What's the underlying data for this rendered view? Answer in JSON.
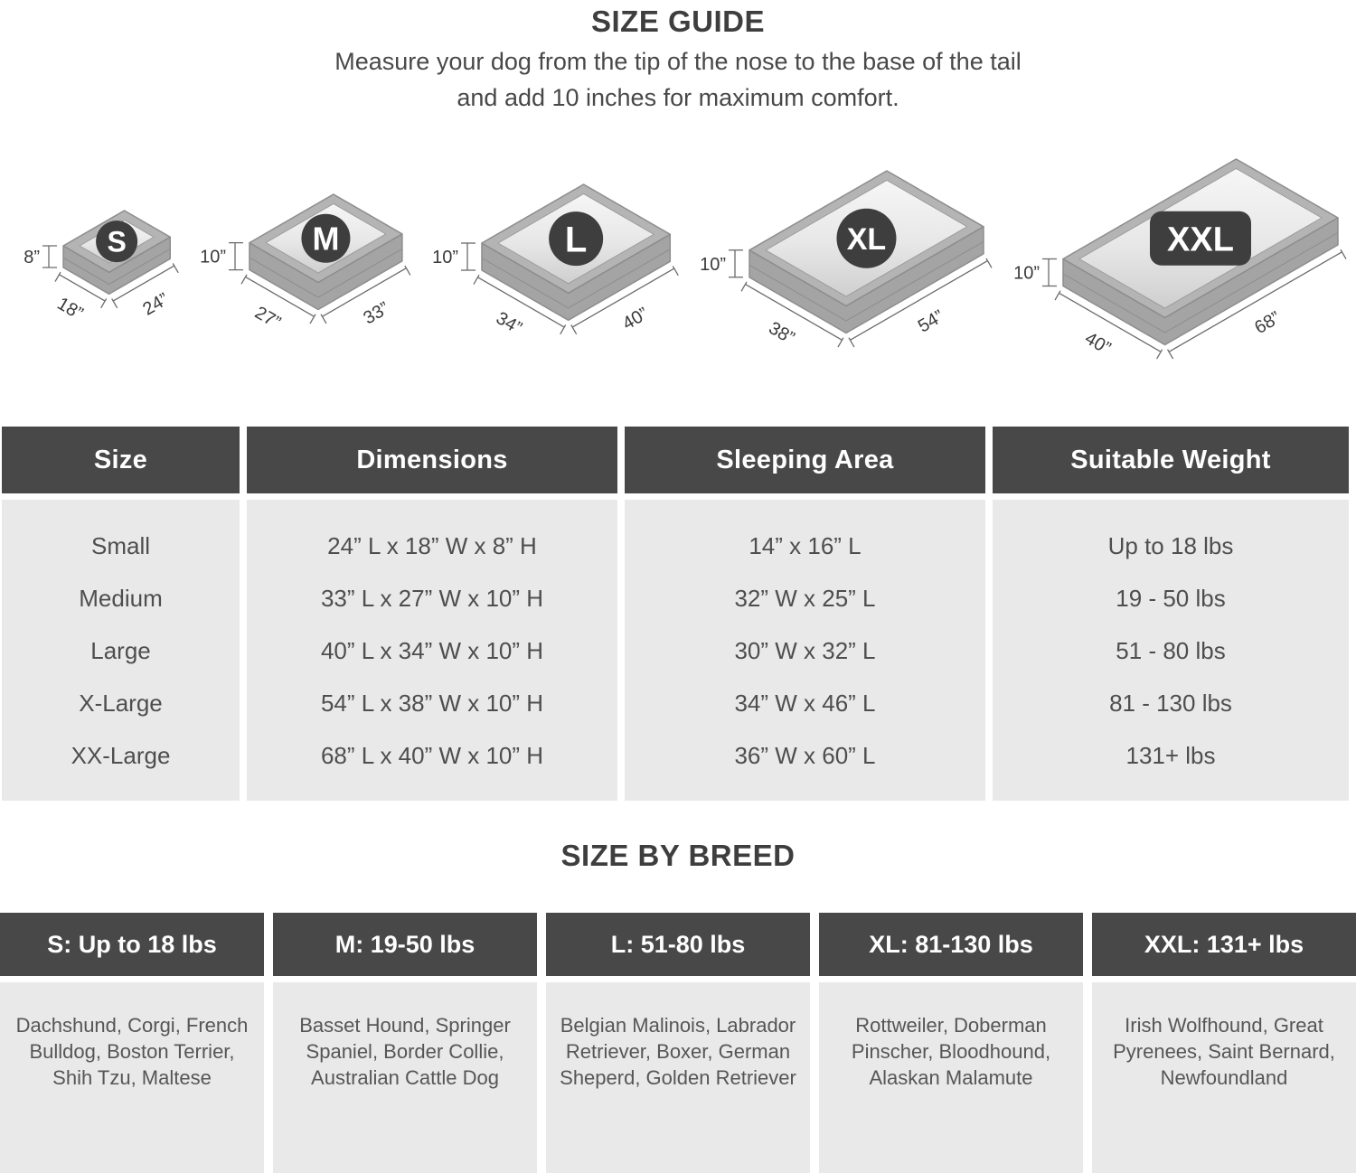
{
  "header": {
    "title": "SIZE GUIDE",
    "subtitle_line1": "Measure your dog from the tip of the nose to the base of the tail",
    "subtitle_line2": "and add 10 inches for maximum comfort."
  },
  "beds": [
    {
      "label": "S",
      "badge": "circle",
      "height_in": 8,
      "width_in": 18,
      "length_in": 24,
      "height_label": "8”",
      "width_label": "18”",
      "length_label": "24”"
    },
    {
      "label": "M",
      "badge": "circle",
      "height_in": 10,
      "width_in": 27,
      "length_in": 33,
      "height_label": "10”",
      "width_label": "27”",
      "length_label": "33”"
    },
    {
      "label": "L",
      "badge": "circle",
      "height_in": 10,
      "width_in": 34,
      "length_in": 40,
      "height_label": "10”",
      "width_label": "34”",
      "length_label": "40”"
    },
    {
      "label": "XL",
      "badge": "circle",
      "height_in": 10,
      "width_in": 38,
      "length_in": 54,
      "height_label": "10”",
      "width_label": "38”",
      "length_label": "54”"
    },
    {
      "label": "XXL",
      "badge": "rounded-rect",
      "height_in": 10,
      "width_in": 40,
      "length_in": 68,
      "height_label": "10”",
      "width_label": "40”",
      "length_label": "68”"
    }
  ],
  "size_table": {
    "columns": [
      "Size",
      "Dimensions",
      "Sleeping Area",
      "Suitable Weight"
    ],
    "rows": [
      {
        "size": "Small",
        "dimensions": "24” L x 18” W x 8” H",
        "sleeping_area": "14” x 16” L",
        "weight": "Up to 18 lbs"
      },
      {
        "size": "Medium",
        "dimensions": "33” L x 27” W x 10” H",
        "sleeping_area": "32” W x 25” L",
        "weight": "19 - 50 lbs"
      },
      {
        "size": "Large",
        "dimensions": "40” L x 34” W x 10” H",
        "sleeping_area": "30” W x 32” L",
        "weight": "51 - 80 lbs"
      },
      {
        "size": "X-Large",
        "dimensions": "54” L x 38” W x 10” H",
        "sleeping_area": "34” W x 46” L",
        "weight": "81 - 130 lbs"
      },
      {
        "size": "XX-Large",
        "dimensions": "68” L x 40” W x 10” H",
        "sleeping_area": "36” W x 60” L",
        "weight": "131+ lbs"
      }
    ]
  },
  "breed_section": {
    "title": "SIZE BY BREED",
    "columns": [
      {
        "header": "S: Up to 18 lbs",
        "breeds": "Dachshund, Corgi, French Bulldog, Boston Terrier, Shih Tzu, Maltese"
      },
      {
        "header": "M: 19-50 lbs",
        "breeds": "Basset Hound, Springer Spaniel, Border Collie, Australian Cattle Dog"
      },
      {
        "header": "L: 51-80 lbs",
        "breeds": "Belgian Malinois, Labrador Retriever, Boxer, German Sheperd, Golden Retriever"
      },
      {
        "header": "XL: 81-130 lbs",
        "breeds": "Rottweiler, Doberman Pinscher, Bloodhound, Alaskan Malamute"
      },
      {
        "header": "XXL: 131+ lbs",
        "breeds": "Irish Wolfhound, Great Pyrenees, Saint Bernard, Newfoundland"
      }
    ]
  },
  "colors": {
    "table_header_bg": "#484848",
    "table_body_bg": "#e9e9e9",
    "header_text": "#ffffff",
    "body_text": "#4e4e4e",
    "title_text": "#3e3e3e",
    "bed_rim": "#b4b4b4",
    "bed_side": "#a4a4a4",
    "bed_outline": "#8d8d8d",
    "bed_inner_light": "#f6f6f6",
    "bed_inner_dark": "#cfcfcf",
    "badge_bg": "#3e3e3e",
    "dim_line": "#6b6b6b",
    "dim_text": "#3a3a3a"
  }
}
